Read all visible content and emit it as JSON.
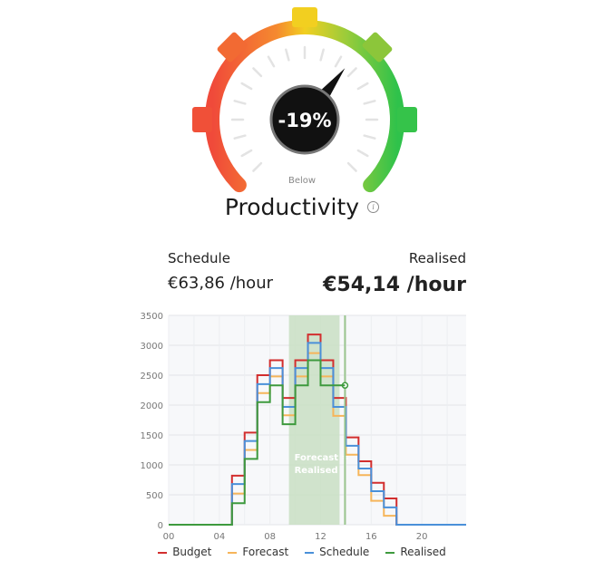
{
  "gauge": {
    "value_label": "-19%",
    "status_label": "Below",
    "colors": {
      "low": "#f04a3a",
      "mid": "#f2cf20",
      "high": "#2fc24b"
    }
  },
  "title": "Productivity",
  "info_icon": "info-icon",
  "stats": {
    "schedule_label": "Schedule",
    "schedule_value": "€63,86 /hour",
    "realised_label": "Realised",
    "realised_value": "€54,14 /hour"
  },
  "chart_data": {
    "type": "line",
    "step": true,
    "x": [
      0,
      1,
      2,
      3,
      4,
      5,
      6,
      7,
      8,
      9,
      10,
      11,
      12,
      13,
      14,
      15,
      16,
      17,
      18,
      19,
      20,
      21,
      22,
      23
    ],
    "x_tick_labels": [
      "00",
      "04",
      "08",
      "12",
      "16",
      "20"
    ],
    "x_ticks": [
      0,
      4,
      8,
      12,
      16,
      20
    ],
    "ylim": [
      0,
      3500
    ],
    "y_ticks": [
      0,
      500,
      1000,
      1500,
      2000,
      2500,
      3000,
      3500
    ],
    "grid": true,
    "legend_position": "bottom",
    "highlight": {
      "x_start": 9.5,
      "x_end": 13.5,
      "label": "Forecast = Realised",
      "color": "#c9dfc3"
    },
    "marker_x": 14,
    "series": [
      {
        "name": "Budget",
        "color": "#d22e2e",
        "values": [
          0,
          0,
          0,
          0,
          0,
          820,
          1540,
          2500,
          2750,
          2120,
          2750,
          3180,
          2750,
          2120,
          1460,
          1060,
          700,
          440,
          0,
          0,
          0,
          0,
          0,
          0
        ]
      },
      {
        "name": "Forecast",
        "color": "#f6b55a",
        "values": [
          0,
          0,
          0,
          0,
          0,
          520,
          1250,
          2200,
          2480,
          1830,
          2480,
          2870,
          2480,
          1820,
          1170,
          830,
          400,
          150,
          0,
          0,
          0,
          0,
          0,
          0
        ]
      },
      {
        "name": "Schedule",
        "color": "#4a90d9",
        "values": [
          0,
          0,
          0,
          0,
          0,
          680,
          1400,
          2350,
          2620,
          1970,
          2620,
          3040,
          2620,
          1970,
          1320,
          940,
          560,
          290,
          0,
          0,
          0,
          0,
          0,
          0
        ]
      },
      {
        "name": "Realised",
        "color": "#3e9a3e",
        "values": [
          0,
          0,
          0,
          0,
          0,
          360,
          1100,
          2050,
          2330,
          1680,
          2330,
          2750,
          2330,
          null,
          null,
          null,
          null,
          null,
          null,
          null,
          null,
          null,
          null,
          null
        ]
      }
    ]
  }
}
